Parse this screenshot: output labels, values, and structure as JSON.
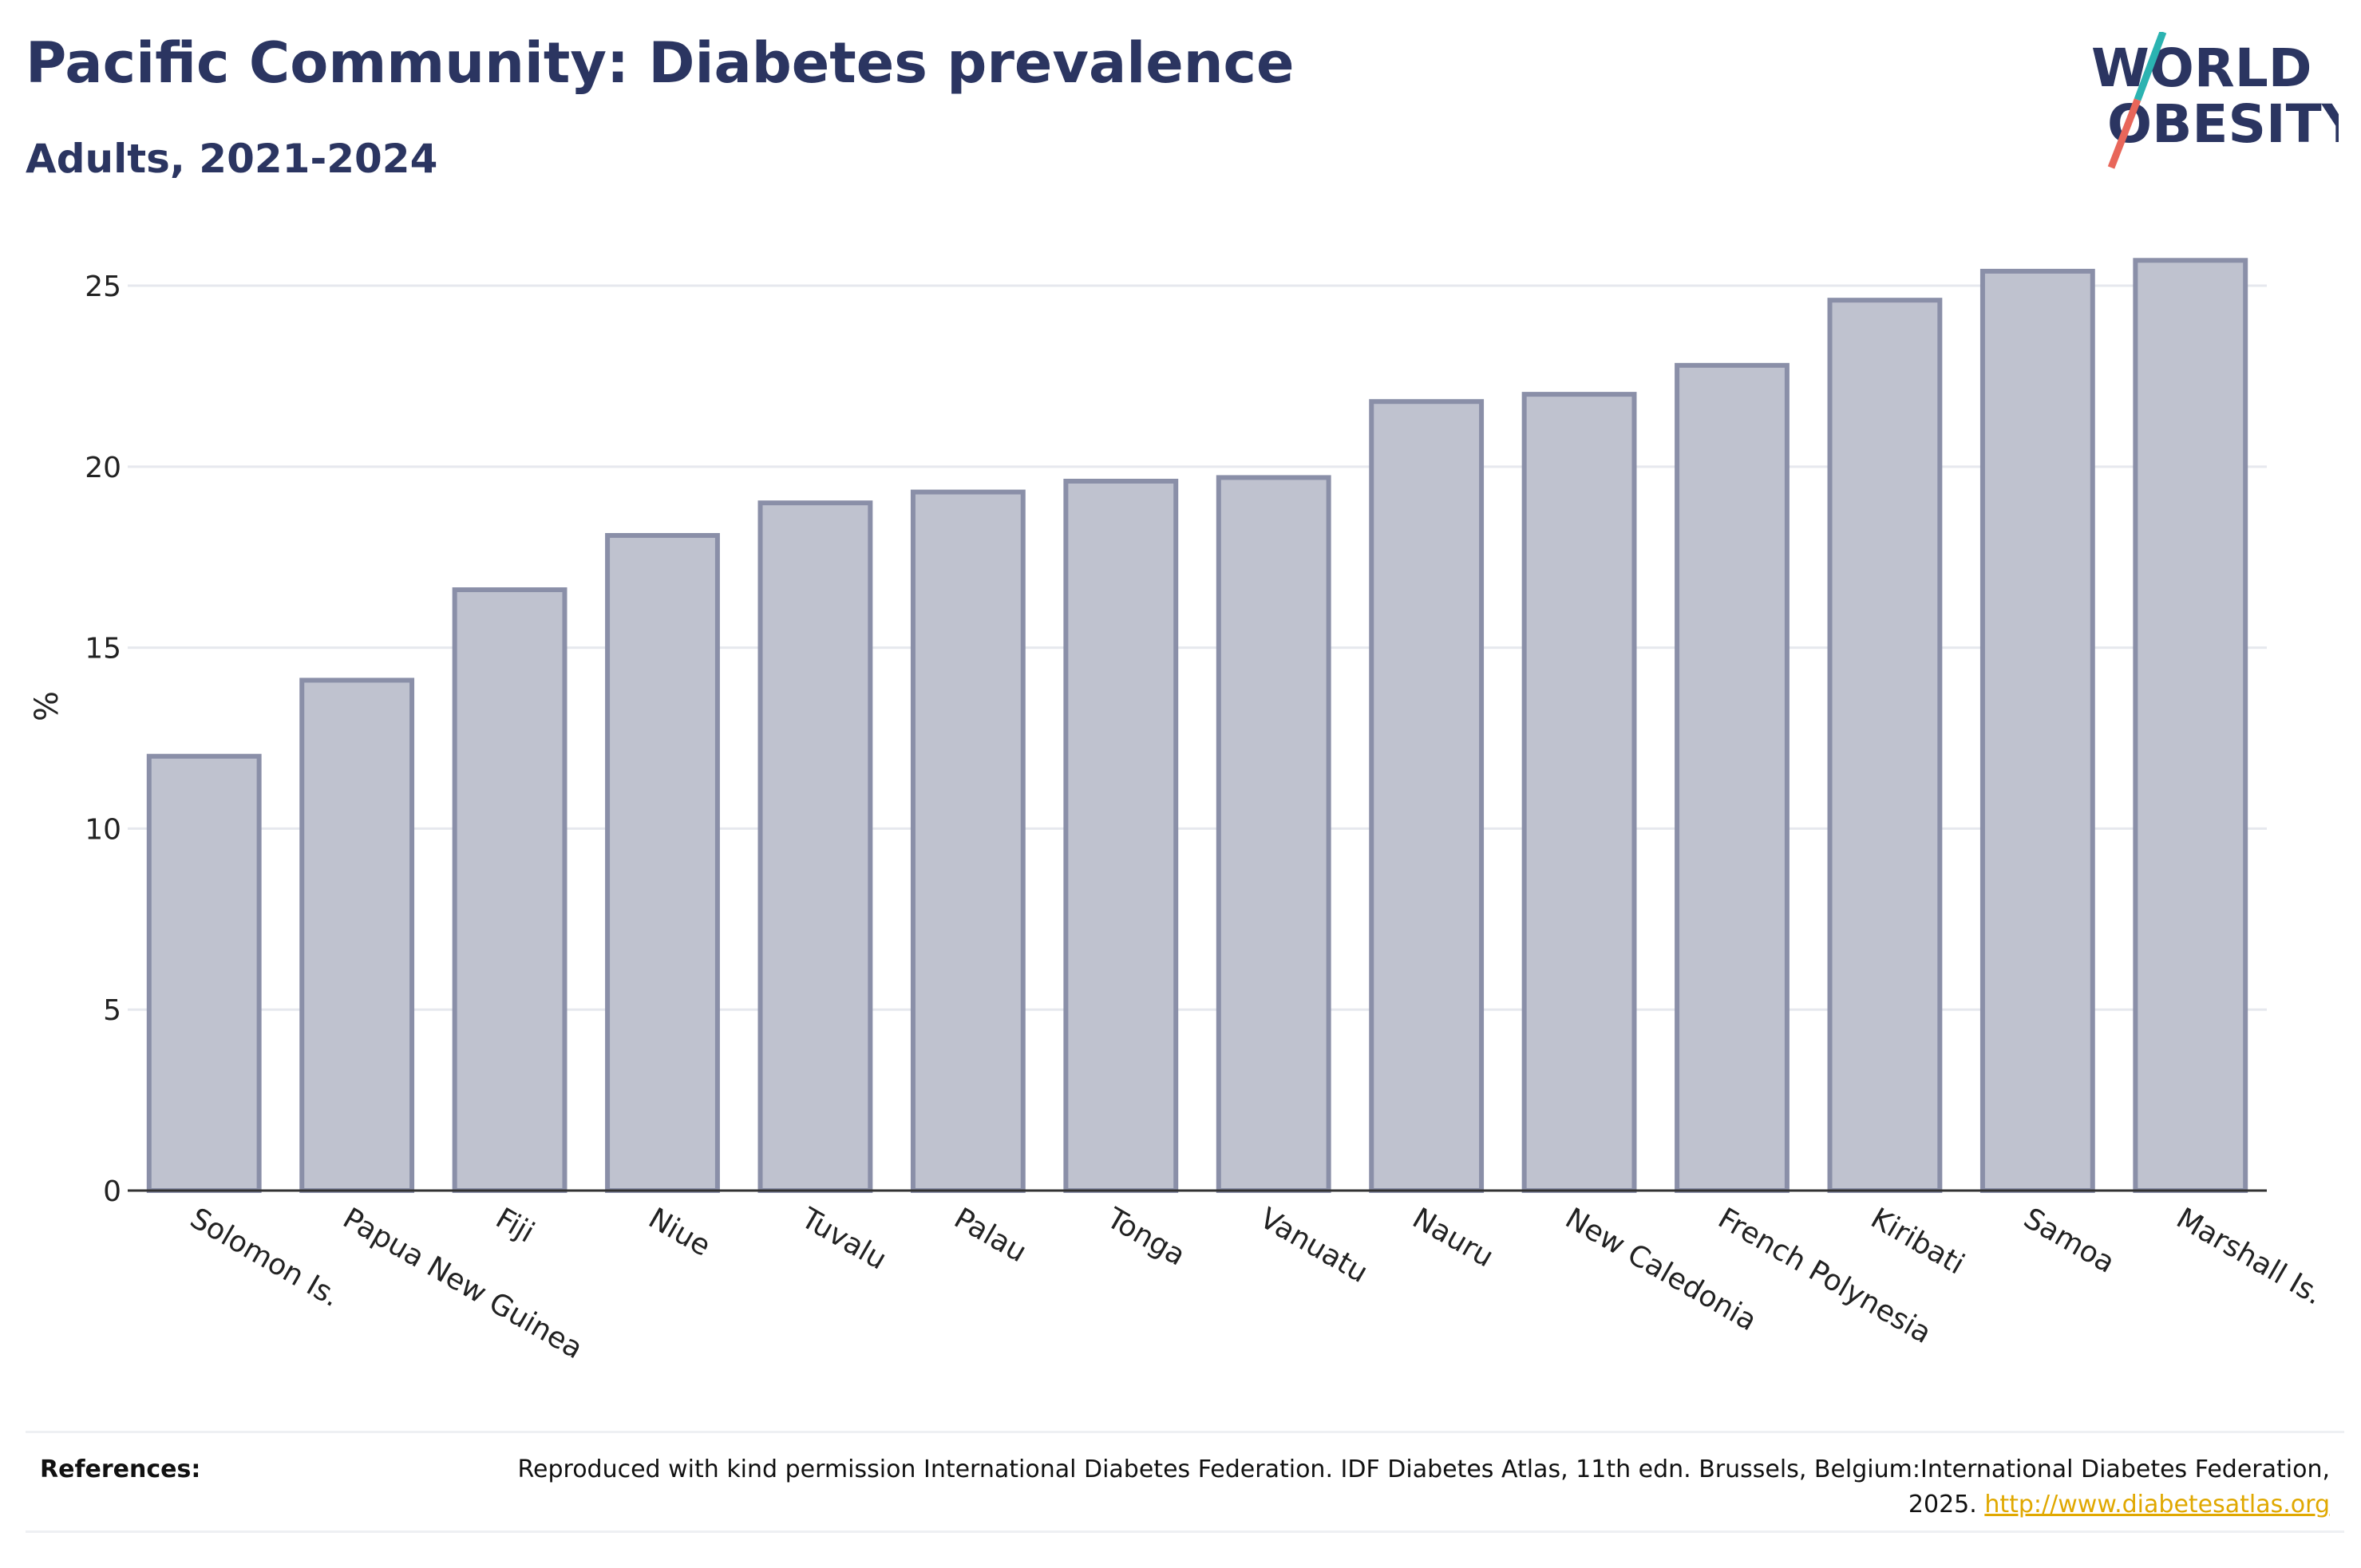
{
  "header": {
    "title": "Pacific Community: Diabetes prevalence",
    "subtitle": "Adults, 2021-2024"
  },
  "logo": {
    "line1": "WORLD",
    "line2": "OBESITY",
    "colors": {
      "text": "#2b3561",
      "slash_top": "#2bb3b1",
      "slash_bottom": "#e8665a"
    }
  },
  "chart_data": {
    "type": "bar",
    "title": "Pacific Community: Diabetes prevalence",
    "subtitle": "Adults, 2021-2024",
    "xlabel": "",
    "ylabel": "%",
    "ylim": [
      0,
      26.5
    ],
    "yticks": [
      0,
      5,
      10,
      15,
      20,
      25
    ],
    "grid": true,
    "categories": [
      "Solomon Is.",
      "Papua New Guinea",
      "Fiji",
      "Niue",
      "Tuvalu",
      "Palau",
      "Tonga",
      "Vanuatu",
      "Nauru",
      "New Caledonia",
      "French Polynesia",
      "Kiribati",
      "Samoa",
      "Marshall Is."
    ],
    "values": [
      12.0,
      14.1,
      16.6,
      18.1,
      19.0,
      19.3,
      19.6,
      19.7,
      21.8,
      22.0,
      22.8,
      24.6,
      25.4,
      25.7
    ],
    "bar_fill": "#bfc2cf",
    "bar_stroke": "#8a8fa8"
  },
  "references": {
    "label": "References:",
    "text": "Reproduced with kind permission International Diabetes Federation. IDF Diabetes Atlas, 11th edn. Brussels, Belgium:International Diabetes Federation, 2025.",
    "link": "http://www.diabetesatlas.org"
  }
}
